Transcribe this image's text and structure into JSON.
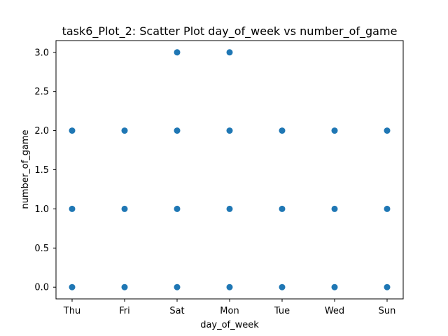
{
  "chart_data": {
    "type": "scatter",
    "title": "task6_Plot_2: Scatter Plot day_of_week vs number_of_game",
    "xlabel": "day_of_week",
    "ylabel": "number_of_game",
    "categories": [
      "Thu",
      "Fri",
      "Sat",
      "Mon",
      "Tue",
      "Wed",
      "Sun"
    ],
    "ylim": [
      -0.15,
      3.15
    ],
    "yticks": [
      0.0,
      0.5,
      1.0,
      1.5,
      2.0,
      2.5,
      3.0
    ],
    "ytick_labels": [
      "0.0",
      "0.5",
      "1.0",
      "1.5",
      "2.0",
      "2.5",
      "3.0"
    ],
    "grid": false,
    "marker_color": "#1f77b4",
    "series": [
      {
        "name": "number_of_game",
        "points": [
          {
            "x": "Thu",
            "y": 0
          },
          {
            "x": "Thu",
            "y": 1
          },
          {
            "x": "Thu",
            "y": 2
          },
          {
            "x": "Fri",
            "y": 0
          },
          {
            "x": "Fri",
            "y": 1
          },
          {
            "x": "Fri",
            "y": 2
          },
          {
            "x": "Sat",
            "y": 0
          },
          {
            "x": "Sat",
            "y": 1
          },
          {
            "x": "Sat",
            "y": 2
          },
          {
            "x": "Sat",
            "y": 3
          },
          {
            "x": "Mon",
            "y": 0
          },
          {
            "x": "Mon",
            "y": 1
          },
          {
            "x": "Mon",
            "y": 2
          },
          {
            "x": "Mon",
            "y": 3
          },
          {
            "x": "Tue",
            "y": 0
          },
          {
            "x": "Tue",
            "y": 1
          },
          {
            "x": "Tue",
            "y": 2
          },
          {
            "x": "Wed",
            "y": 0
          },
          {
            "x": "Wed",
            "y": 1
          },
          {
            "x": "Wed",
            "y": 2
          },
          {
            "x": "Sun",
            "y": 0
          },
          {
            "x": "Sun",
            "y": 1
          },
          {
            "x": "Sun",
            "y": 2
          }
        ]
      }
    ]
  }
}
